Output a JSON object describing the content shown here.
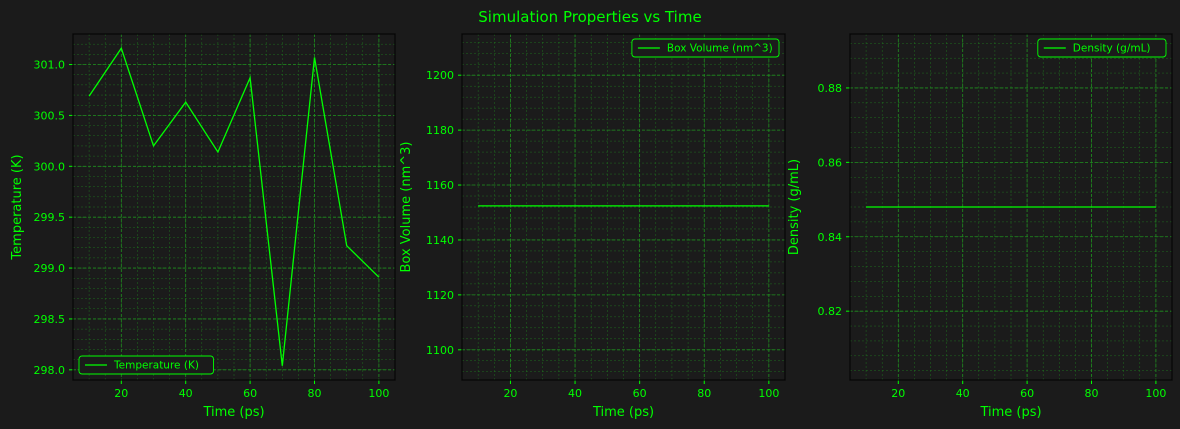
{
  "figure": {
    "title": "Simulation Properties vs Time"
  },
  "colors": {
    "background": "#1b1b1b",
    "accent": "#00ff00",
    "grid": "#1f8f1f",
    "frame": "#050505"
  },
  "chart_data": [
    {
      "type": "line",
      "title": "",
      "xlabel": "Time (ps)",
      "ylabel": "Temperature (K)",
      "xlim": [
        5,
        105
      ],
      "ylim": [
        297.9,
        301.3
      ],
      "x_ticks": [
        20,
        40,
        60,
        80,
        100
      ],
      "y_ticks": [
        298.0,
        298.5,
        299.0,
        299.5,
        300.0,
        300.5,
        301.0
      ],
      "y_tick_labels": [
        "298.0",
        "298.5",
        "299.0",
        "299.5",
        "300.0",
        "300.5",
        "301.0"
      ],
      "legend_location": "lower-left",
      "grid": true,
      "series": [
        {
          "name": "Temperature (K)",
          "x": [
            10,
            20,
            30,
            40,
            50,
            60,
            70,
            80,
            90,
            100
          ],
          "y": [
            300.69,
            301.16,
            300.2,
            300.63,
            300.14,
            300.87,
            298.04,
            301.07,
            299.22,
            298.91
          ]
        }
      ]
    },
    {
      "type": "line",
      "title": "",
      "xlabel": "Time (ps)",
      "ylabel": "Box Volume (nm^3)",
      "xlim": [
        5,
        105
      ],
      "ylim": [
        1089,
        1215
      ],
      "x_ticks": [
        20,
        40,
        60,
        80,
        100
      ],
      "y_ticks": [
        1100,
        1120,
        1140,
        1160,
        1180,
        1200
      ],
      "y_tick_labels": [
        "1100",
        "1120",
        "1140",
        "1160",
        "1180",
        "1200"
      ],
      "legend_location": "upper-right",
      "grid": true,
      "series": [
        {
          "name": "Box Volume (nm^3)",
          "x": [
            10,
            20,
            30,
            40,
            50,
            60,
            70,
            80,
            90,
            100
          ],
          "y": [
            1152.4,
            1152.4,
            1152.4,
            1152.4,
            1152.4,
            1152.4,
            1152.4,
            1152.4,
            1152.4,
            1152.4
          ]
        }
      ]
    },
    {
      "type": "line",
      "title": "",
      "xlabel": "Time (ps)",
      "ylabel": "Density (g/mL)",
      "xlim": [
        5,
        105
      ],
      "ylim": [
        0.8015,
        0.8945
      ],
      "x_ticks": [
        20,
        40,
        60,
        80,
        100
      ],
      "y_ticks": [
        0.82,
        0.84,
        0.86,
        0.88
      ],
      "y_tick_labels": [
        "0.82",
        "0.84",
        "0.86",
        "0.88"
      ],
      "legend_location": "upper-right",
      "grid": true,
      "series": [
        {
          "name": "Density (g/mL)",
          "x": [
            10,
            20,
            30,
            40,
            50,
            60,
            70,
            80,
            90,
            100
          ],
          "y": [
            0.848,
            0.848,
            0.848,
            0.848,
            0.848,
            0.848,
            0.848,
            0.848,
            0.848,
            0.848
          ]
        }
      ]
    }
  ]
}
